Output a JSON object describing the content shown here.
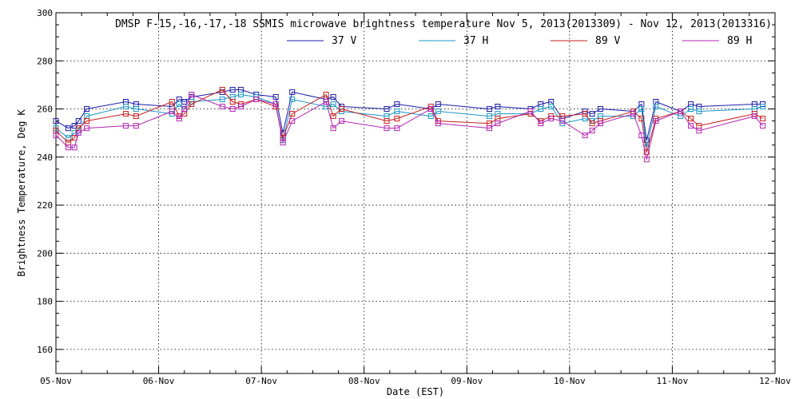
{
  "chart_data": {
    "type": "line",
    "title": "DMSP F-15,-16,-17,-18 SSMIS microwave brightness temperature Nov  5, 2013(2013309) - Nov 12, 2013(2013316)",
    "xlabel": "Date (EST)",
    "ylabel": "Brightness Temperature, Deg K",
    "xlim": [
      0,
      7
    ],
    "ylim": [
      150,
      300
    ],
    "x_ticks": [
      {
        "value": 0,
        "label": "05-Nov"
      },
      {
        "value": 1,
        "label": "06-Nov"
      },
      {
        "value": 2,
        "label": "07-Nov"
      },
      {
        "value": 3,
        "label": "08-Nov"
      },
      {
        "value": 4,
        "label": "09-Nov"
      },
      {
        "value": 5,
        "label": "10-Nov"
      },
      {
        "value": 6,
        "label": "11-Nov"
      },
      {
        "value": 7,
        "label": "12-Nov"
      }
    ],
    "y_ticks": [
      {
        "value": 160,
        "label": "160"
      },
      {
        "value": 180,
        "label": "180"
      },
      {
        "value": 200,
        "label": "200"
      },
      {
        "value": 220,
        "label": "220"
      },
      {
        "value": 240,
        "label": "240"
      },
      {
        "value": 260,
        "label": "260"
      },
      {
        "value": 280,
        "label": "280"
      },
      {
        "value": 300,
        "label": "300"
      }
    ],
    "grid": true,
    "legend_position": "top",
    "x": [
      0.0,
      0.12,
      0.18,
      0.22,
      0.3,
      0.68,
      0.78,
      1.13,
      1.2,
      1.25,
      1.32,
      1.62,
      1.72,
      1.8,
      1.95,
      2.14,
      2.21,
      2.3,
      2.63,
      2.7,
      2.78,
      3.22,
      3.32,
      3.65,
      3.72,
      4.22,
      4.3,
      4.62,
      4.72,
      4.82,
      4.93,
      5.15,
      5.22,
      5.3,
      5.62,
      5.7,
      5.75,
      5.84,
      6.08,
      6.18,
      6.26,
      6.8,
      6.88
    ],
    "series": [
      {
        "name": "37 V",
        "color": "#1a1aa8",
        "values": [
          255,
          252,
          253,
          255,
          260,
          263,
          262,
          261,
          264,
          263,
          265,
          267,
          268,
          268,
          266,
          265,
          250,
          267,
          264,
          265,
          261,
          260,
          262,
          260,
          262,
          260,
          261,
          260,
          262,
          263,
          256,
          259,
          258,
          260,
          259,
          262,
          247,
          263,
          259,
          262,
          261,
          262,
          262
        ]
      },
      {
        "name": "37 H",
        "color": "#1a96c8",
        "values": [
          252,
          248,
          250,
          251,
          257,
          261,
          260,
          258,
          262,
          260,
          263,
          264,
          265,
          266,
          265,
          262,
          247,
          264,
          261,
          262,
          259,
          257,
          259,
          257,
          259,
          257,
          258,
          258,
          260,
          261,
          254,
          256,
          255,
          257,
          257,
          260,
          244,
          261,
          257,
          260,
          259,
          260,
          261
        ]
      },
      {
        "name": "89 V",
        "color": "#c81e1e",
        "values": [
          251,
          246,
          248,
          252,
          255,
          258,
          257,
          263,
          257,
          258,
          262,
          268,
          263,
          262,
          264,
          261,
          248,
          258,
          266,
          257,
          260,
          255,
          256,
          261,
          255,
          254,
          256,
          258,
          255,
          257,
          257,
          258,
          254,
          255,
          259,
          256,
          242,
          256,
          259,
          256,
          253,
          258,
          256
        ]
      },
      {
        "name": "89 H",
        "color": "#b424b4",
        "values": [
          249,
          244,
          244,
          250,
          252,
          253,
          253,
          259,
          256,
          260,
          266,
          261,
          260,
          261,
          264,
          262,
          246,
          255,
          263,
          252,
          255,
          252,
          252,
          260,
          254,
          252,
          254,
          259,
          254,
          256,
          255,
          249,
          251,
          254,
          258,
          249,
          239,
          255,
          259,
          253,
          251,
          257,
          253
        ]
      }
    ]
  }
}
